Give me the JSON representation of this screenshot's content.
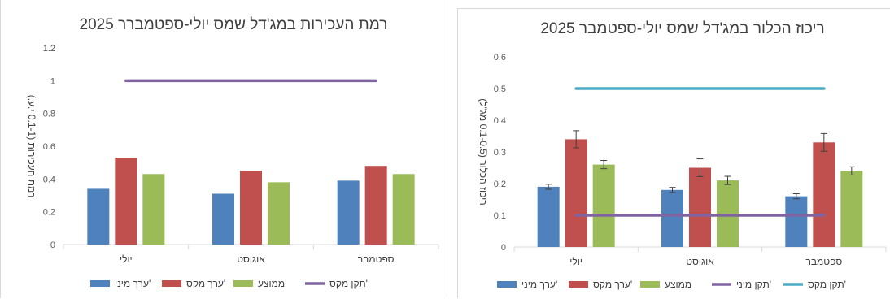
{
  "chart_data": [
    {
      "type": "bar",
      "title": "רמת העכירות במג'דל שמס יולי-ספטמברר 2025",
      "ylabel": "רמת העכירות (0.1-1 י.ע.)",
      "xlabel": "",
      "ylim": [
        0,
        1.2
      ],
      "yticks": [
        "0",
        "0.2",
        "0.4",
        "0.6",
        "0.8",
        "1",
        "1.2"
      ],
      "categories": [
        "יולי",
        "אוגוסט",
        "ספטמבר"
      ],
      "series": [
        {
          "name": "ערך מיני'",
          "values": [
            0.34,
            0.31,
            0.39
          ],
          "color": "#4f81bd"
        },
        {
          "name": "ערך מקס'",
          "values": [
            0.53,
            0.45,
            0.48
          ],
          "color": "#c0504d"
        },
        {
          "name": "ממוצע",
          "values": [
            0.43,
            0.38,
            0.43
          ],
          "color": "#9bbb59"
        }
      ],
      "lines": [
        {
          "name": "תקן מקס'",
          "value": 1,
          "color": "#8064a2"
        }
      ],
      "grid": false,
      "legend": "bottom"
    },
    {
      "type": "bar",
      "title": "ריכוז הכלור במג'דל שמס יולי-ספטמבר 2025",
      "ylabel": "ריכוז הכלור (0.1-0.5 מג\"ל)",
      "xlabel": "",
      "ylim": [
        0,
        0.6
      ],
      "yticks": [
        "0",
        "0.1",
        "0.2",
        "0.3",
        "0.4",
        "0.5",
        "0.6"
      ],
      "categories": [
        "יולי",
        "אוגוסט",
        "ספטמבר"
      ],
      "series": [
        {
          "name": "ערך מיני'",
          "values": [
            0.19,
            0.18,
            0.16
          ],
          "errors": [
            0.008,
            0.008,
            0.008
          ],
          "color": "#4f81bd"
        },
        {
          "name": "ערך מקס'",
          "values": [
            0.34,
            0.25,
            0.33
          ],
          "errors": [
            0.027,
            0.028,
            0.028
          ],
          "color": "#c0504d"
        },
        {
          "name": "ממוצע",
          "values": [
            0.26,
            0.21,
            0.24
          ],
          "errors": [
            0.013,
            0.013,
            0.013
          ],
          "color": "#9bbb59"
        }
      ],
      "lines": [
        {
          "name": "תקן מיני'",
          "value": 0.1,
          "color": "#8064a2"
        },
        {
          "name": "תקן מקס'",
          "value": 0.5,
          "color": "#4bacc6"
        }
      ],
      "grid": false,
      "legend": "bottom"
    }
  ]
}
